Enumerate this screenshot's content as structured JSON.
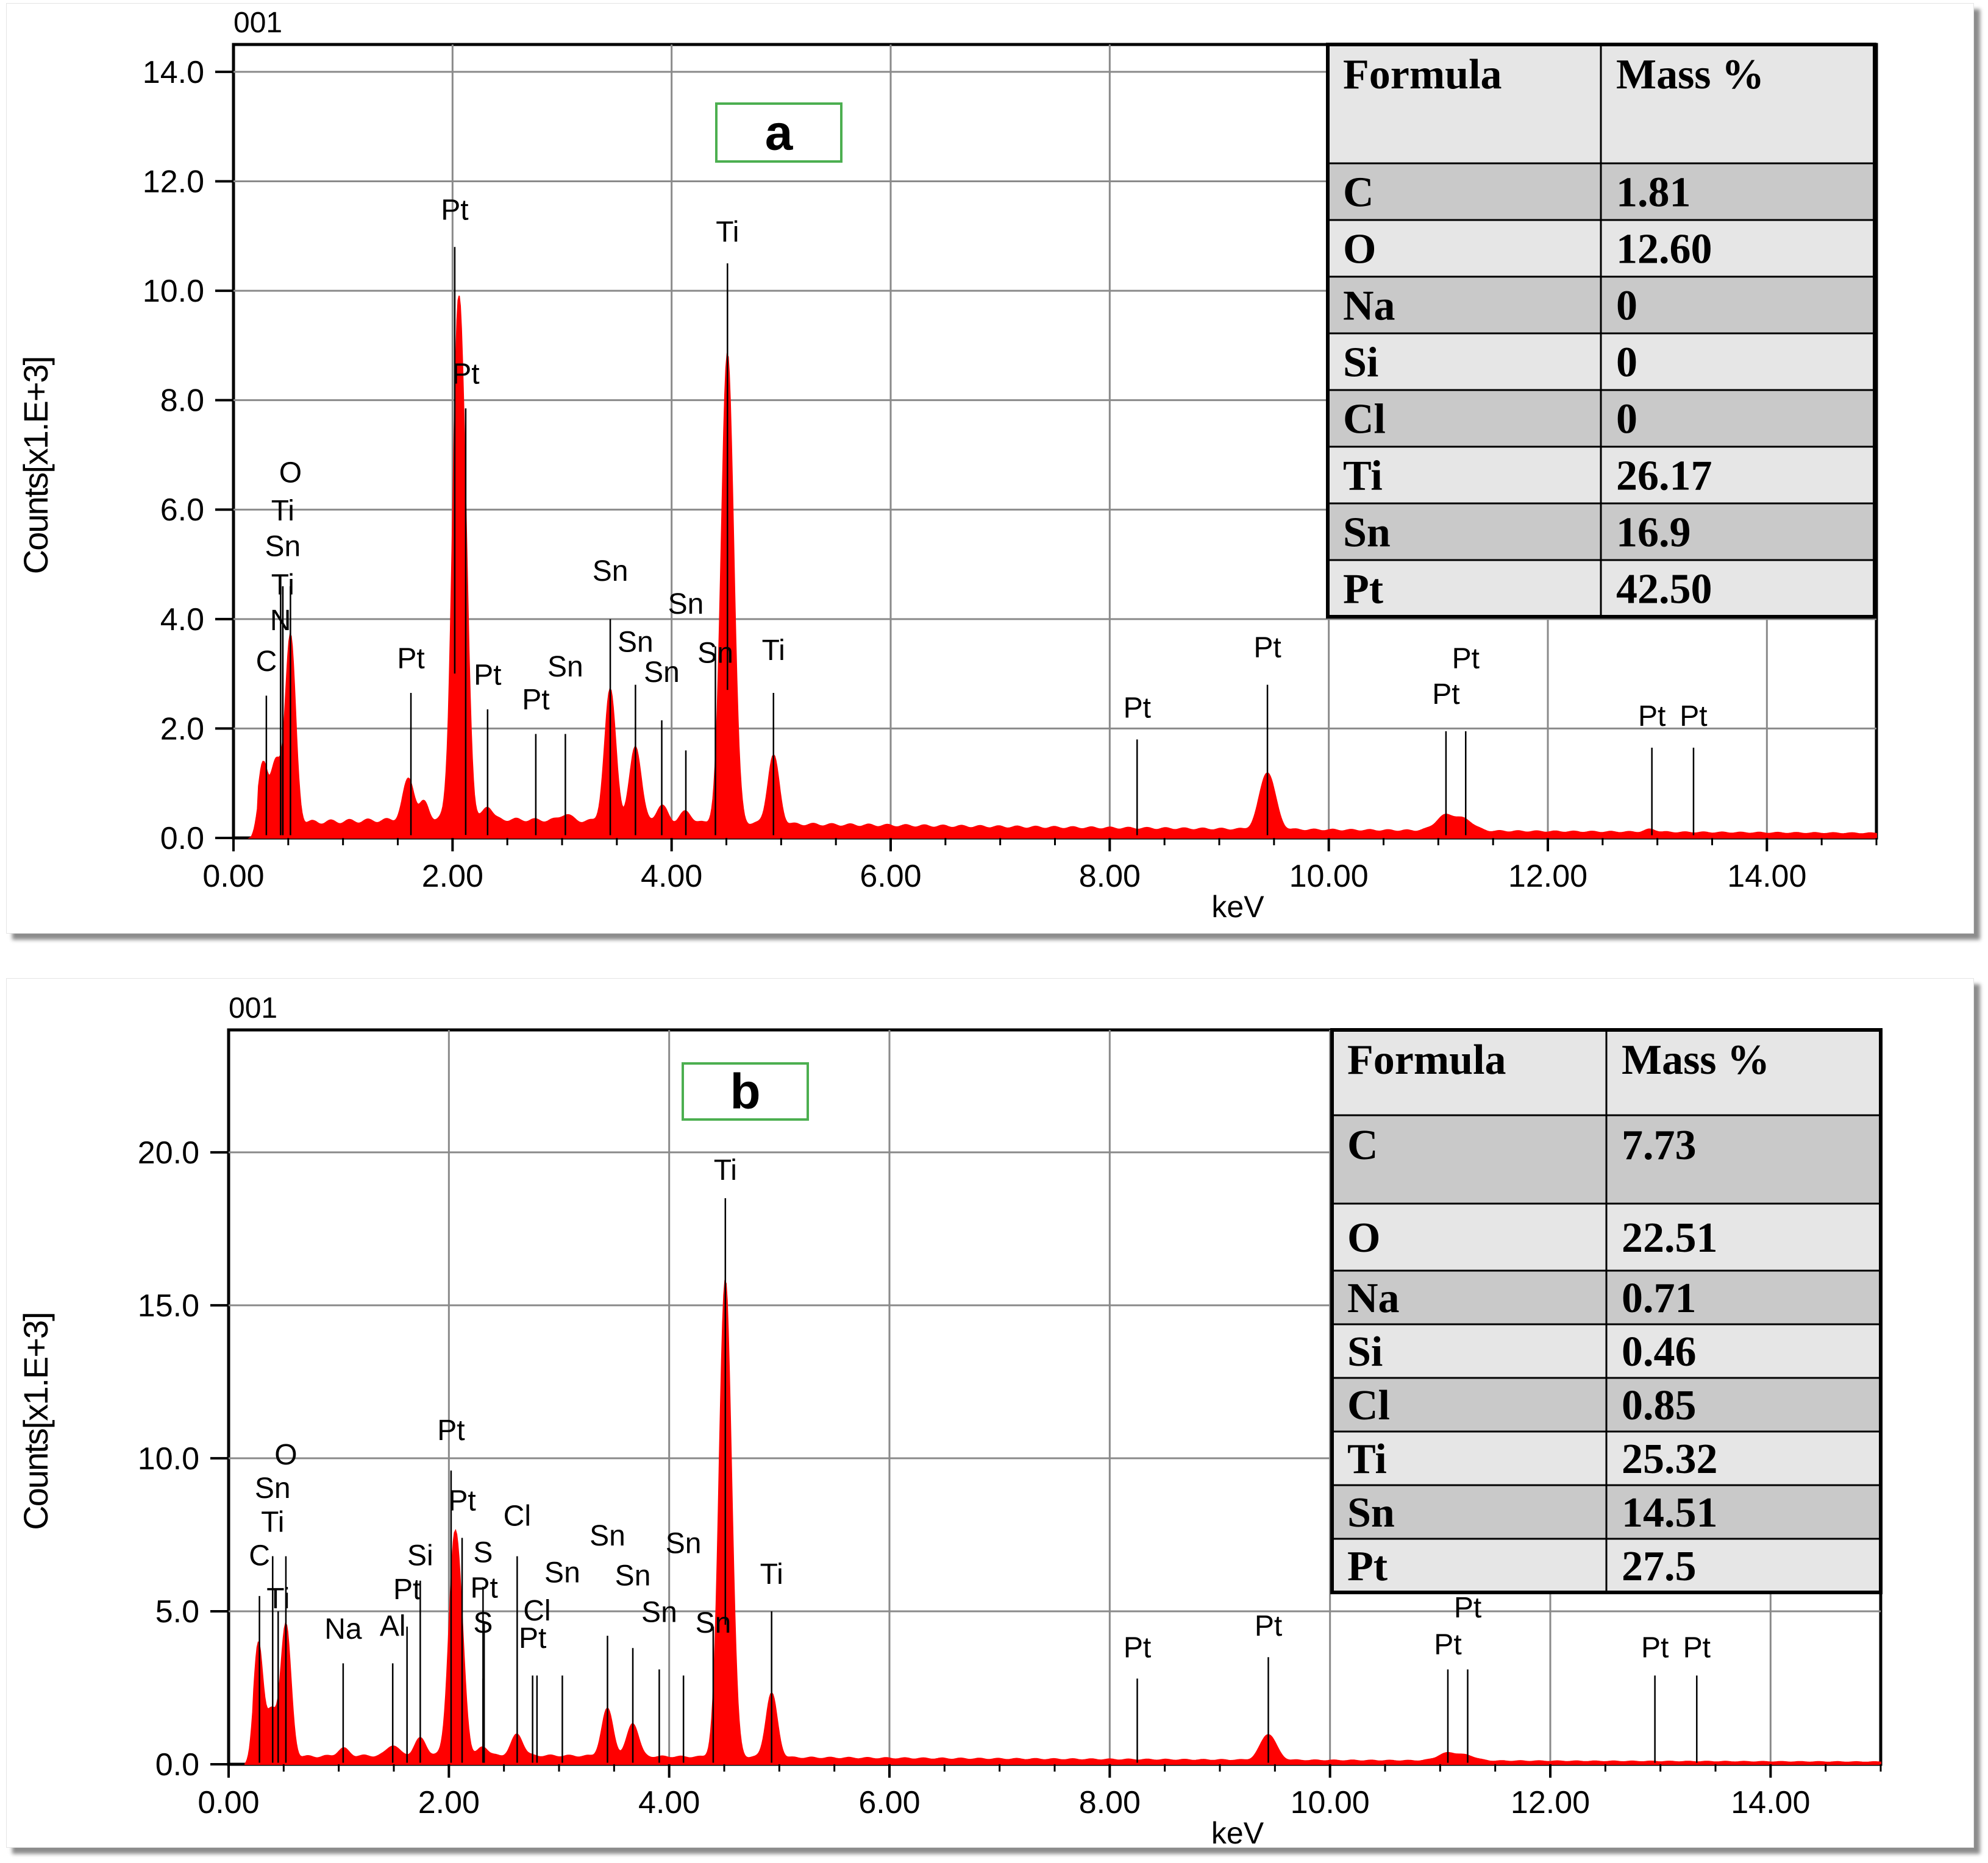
{
  "chart_data": [
    {
      "type": "area",
      "id": "a",
      "panel_label": "a",
      "corner_label": "001",
      "xlabel": "keV",
      "ylabel": "Counts[x1.E+3]",
      "xlim": [
        0,
        15
      ],
      "ylim": [
        0,
        14.5
      ],
      "x_ticks": [
        0,
        2,
        4,
        6,
        8,
        10,
        12,
        14
      ],
      "x_tick_labels": [
        "0.00",
        "2.00",
        "4.00",
        "6.00",
        "8.00",
        "10.00",
        "12.00",
        "14.00"
      ],
      "y_ticks": [
        0,
        2,
        4,
        6,
        8,
        10,
        12,
        14
      ],
      "y_tick_labels": [
        "0.0",
        "2.0",
        "4.0",
        "6.0",
        "8.0",
        "10.0",
        "12.0",
        "14.0"
      ],
      "grid": true,
      "series_color": "#ff0000",
      "background": 0.35,
      "peaks": [
        {
          "x": 0.27,
          "h": 1.1,
          "w": 0.04
        },
        {
          "x": 0.39,
          "h": 1.1,
          "w": 0.05
        },
        {
          "x": 0.52,
          "h": 3.4,
          "w": 0.045
        },
        {
          "x": 1.6,
          "h": 0.75,
          "w": 0.05
        },
        {
          "x": 1.74,
          "h": 0.3,
          "w": 0.04
        },
        {
          "x": 2.05,
          "h": 8.9,
          "w": 0.05
        },
        {
          "x": 2.12,
          "h": 2.5,
          "w": 0.04
        },
        {
          "x": 2.32,
          "h": 0.25,
          "w": 0.04
        },
        {
          "x": 3.03,
          "h": 0.12,
          "w": 0.05
        },
        {
          "x": 3.44,
          "h": 2.4,
          "w": 0.05
        },
        {
          "x": 3.67,
          "h": 1.4,
          "w": 0.05
        },
        {
          "x": 3.91,
          "h": 0.3,
          "w": 0.05
        },
        {
          "x": 4.13,
          "h": 0.2,
          "w": 0.05
        },
        {
          "x": 4.51,
          "h": 8.6,
          "w": 0.055
        },
        {
          "x": 4.93,
          "h": 1.25,
          "w": 0.05
        },
        {
          "x": 9.44,
          "h": 1.05,
          "w": 0.07
        },
        {
          "x": 11.07,
          "h": 0.28,
          "w": 0.09
        },
        {
          "x": 11.25,
          "h": 0.18,
          "w": 0.08
        },
        {
          "x": 12.94,
          "h": 0.05,
          "w": 0.05
        }
      ],
      "annotations": [
        {
          "label": "O",
          "x": 0.52,
          "line_top": 4.6,
          "text_y": 6.5
        },
        {
          "label": "Ti",
          "x": 0.45,
          "line_top": 4.6,
          "text_y": 5.8
        },
        {
          "label": "Sn",
          "x": 0.45,
          "line_top": 4.6,
          "text_y": 5.15
        },
        {
          "label": "Ti",
          "x": 0.45,
          "line_top": 4.6,
          "text_y": 4.45
        },
        {
          "label": "N",
          "x": 0.43,
          "line_top": 4.6,
          "text_y": 3.8
        },
        {
          "label": "C",
          "x": 0.3,
          "line_top": 2.6,
          "text_y": 3.05
        },
        {
          "label": "Pt",
          "x": 2.02,
          "line_top": 10.8,
          "text_y": 11.3
        },
        {
          "label": "Pt",
          "x": 2.12,
          "line_top": 7.85,
          "text_y": 8.3
        },
        {
          "label": "Pt",
          "x": 1.62,
          "line_top": 2.65,
          "text_y": 3.1
        },
        {
          "label": "Pt",
          "x": 2.32,
          "line_top": 2.35,
          "text_y": 2.8
        },
        {
          "label": "Pt",
          "x": 2.76,
          "line_top": 1.9,
          "text_y": 2.35
        },
        {
          "label": "Sn",
          "x": 3.03,
          "line_top": 1.9,
          "text_y": 2.95
        },
        {
          "label": "Sn",
          "x": 3.44,
          "line_top": 4.0,
          "text_y": 4.7
        },
        {
          "label": "Sn",
          "x": 3.67,
          "line_top": 2.8,
          "text_y": 3.4
        },
        {
          "label": "Sn",
          "x": 3.91,
          "line_top": 2.15,
          "text_y": 2.85
        },
        {
          "label": "Sn",
          "x": 4.13,
          "line_top": 1.6,
          "text_y": 4.1
        },
        {
          "label": "Sn",
          "x": 4.4,
          "line_top": 3.5,
          "text_y": 3.2
        },
        {
          "label": "Ti",
          "x": 4.51,
          "line_top": 10.5,
          "text_y": 10.9
        },
        {
          "label": "Ti",
          "x": 4.93,
          "line_top": 2.65,
          "text_y": 3.25
        },
        {
          "label": "Pt",
          "x": 8.25,
          "line_top": 1.8,
          "text_y": 2.2
        },
        {
          "label": "Pt",
          "x": 9.44,
          "line_top": 2.8,
          "text_y": 3.3
        },
        {
          "label": "Pt",
          "x": 11.07,
          "line_top": 1.95,
          "text_y": 2.45
        },
        {
          "label": "Pt",
          "x": 11.25,
          "line_top": 1.95,
          "text_y": 3.1
        },
        {
          "label": "Pt",
          "x": 12.95,
          "line_top": 1.65,
          "text_y": 2.05
        },
        {
          "label": "Pt",
          "x": 13.33,
          "line_top": 1.65,
          "text_y": 2.05
        }
      ],
      "table": {
        "headers": [
          "Formula",
          "Mass %"
        ],
        "rows": [
          [
            "C",
            "1.81"
          ],
          [
            "O",
            "12.60"
          ],
          [
            "Na",
            "0"
          ],
          [
            "Si",
            "0"
          ],
          [
            "Cl",
            "0"
          ],
          [
            "Ti",
            "26.17"
          ],
          [
            "Sn",
            "16.9"
          ],
          [
            "Pt",
            "42.50"
          ]
        ]
      }
    },
    {
      "type": "area",
      "id": "b",
      "panel_label": "b",
      "corner_label": "001",
      "xlabel": "keV",
      "ylabel": "Counts[x1.E+3]",
      "xlim": [
        0,
        15
      ],
      "ylim": [
        0,
        24
      ],
      "x_ticks": [
        0,
        2,
        4,
        6,
        8,
        10,
        12,
        14
      ],
      "x_tick_labels": [
        "0.00",
        "2.00",
        "4.00",
        "6.00",
        "8.00",
        "10.00",
        "12.00",
        "14.00"
      ],
      "y_ticks": [
        0,
        5,
        10,
        15,
        20
      ],
      "y_tick_labels": [
        "0.0",
        "5.0",
        "10.0",
        "15.0",
        "20.0"
      ],
      "grid": true,
      "series_color": "#ff0000",
      "background": 0.3,
      "peaks": [
        {
          "x": 0.27,
          "h": 3.7,
          "w": 0.04
        },
        {
          "x": 0.39,
          "h": 1.5,
          "w": 0.05
        },
        {
          "x": 0.52,
          "h": 4.3,
          "w": 0.045
        },
        {
          "x": 1.04,
          "h": 0.25,
          "w": 0.05
        },
        {
          "x": 1.49,
          "h": 0.35,
          "w": 0.05
        },
        {
          "x": 1.74,
          "h": 0.55,
          "w": 0.05
        },
        {
          "x": 2.05,
          "h": 6.8,
          "w": 0.05
        },
        {
          "x": 2.12,
          "h": 2.0,
          "w": 0.04
        },
        {
          "x": 2.31,
          "h": 0.3,
          "w": 0.04
        },
        {
          "x": 2.62,
          "h": 0.7,
          "w": 0.05
        },
        {
          "x": 3.44,
          "h": 1.55,
          "w": 0.05
        },
        {
          "x": 3.67,
          "h": 1.1,
          "w": 0.05
        },
        {
          "x": 4.51,
          "h": 15.6,
          "w": 0.055
        },
        {
          "x": 4.93,
          "h": 2.1,
          "w": 0.05
        },
        {
          "x": 9.44,
          "h": 0.85,
          "w": 0.07
        },
        {
          "x": 11.07,
          "h": 0.25,
          "w": 0.09
        },
        {
          "x": 11.25,
          "h": 0.15,
          "w": 0.08
        }
      ],
      "annotations": [
        {
          "label": "O",
          "x": 0.52,
          "line_top": 6.8,
          "text_y": 9.8
        },
        {
          "label": "Sn",
          "x": 0.4,
          "line_top": 6.8,
          "text_y": 8.7
        },
        {
          "label": "Ti",
          "x": 0.4,
          "line_top": 6.8,
          "text_y": 7.6
        },
        {
          "label": "C",
          "x": 0.28,
          "line_top": 5.5,
          "text_y": 6.5
        },
        {
          "label": "Ti",
          "x": 0.45,
          "line_top": 5.0,
          "text_y": 5.1
        },
        {
          "label": "Na",
          "x": 1.04,
          "line_top": 3.3,
          "text_y": 4.1
        },
        {
          "label": "Al",
          "x": 1.49,
          "line_top": 3.3,
          "text_y": 4.2
        },
        {
          "label": "Si",
          "x": 1.74,
          "line_top": 6.0,
          "text_y": 6.5
        },
        {
          "label": "Pt",
          "x": 1.62,
          "line_top": 4.5,
          "text_y": 5.4
        },
        {
          "label": "Pt",
          "x": 2.02,
          "line_top": 9.6,
          "text_y": 10.6
        },
        {
          "label": "Pt",
          "x": 2.12,
          "line_top": 7.4,
          "text_y": 8.3
        },
        {
          "label": "Cl",
          "x": 2.62,
          "line_top": 6.8,
          "text_y": 7.8
        },
        {
          "label": "S",
          "x": 2.31,
          "line_top": 5.8,
          "text_y": 6.6
        },
        {
          "label": "Pt",
          "x": 2.32,
          "line_top": 4.6,
          "text_y": 5.45
        },
        {
          "label": "S",
          "x": 2.31,
          "line_top": 2.8,
          "text_y": 4.3
        },
        {
          "label": "Cl",
          "x": 2.8,
          "line_top": 2.9,
          "text_y": 4.7
        },
        {
          "label": "Pt",
          "x": 2.76,
          "line_top": 2.9,
          "text_y": 3.8
        },
        {
          "label": "Sn",
          "x": 3.03,
          "line_top": 2.9,
          "text_y": 5.95
        },
        {
          "label": "Sn",
          "x": 3.44,
          "line_top": 4.2,
          "text_y": 7.15
        },
        {
          "label": "Sn",
          "x": 3.67,
          "line_top": 3.8,
          "text_y": 5.85
        },
        {
          "label": "Sn",
          "x": 3.91,
          "line_top": 3.1,
          "text_y": 4.65
        },
        {
          "label": "Sn",
          "x": 4.13,
          "line_top": 2.9,
          "text_y": 6.9
        },
        {
          "label": "Sn",
          "x": 4.4,
          "line_top": 4.5,
          "text_y": 4.3
        },
        {
          "label": "Ti",
          "x": 4.51,
          "line_top": 18.5,
          "text_y": 19.1
        },
        {
          "label": "Ti",
          "x": 4.93,
          "line_top": 5.0,
          "text_y": 5.9
        },
        {
          "label": "Pt",
          "x": 8.25,
          "line_top": 2.8,
          "text_y": 3.5
        },
        {
          "label": "Pt",
          "x": 9.44,
          "line_top": 3.5,
          "text_y": 4.2
        },
        {
          "label": "Pt",
          "x": 11.07,
          "line_top": 3.1,
          "text_y": 3.6
        },
        {
          "label": "Pt",
          "x": 11.25,
          "line_top": 3.1,
          "text_y": 4.8
        },
        {
          "label": "Pt",
          "x": 12.95,
          "line_top": 2.9,
          "text_y": 3.5
        },
        {
          "label": "Pt",
          "x": 13.33,
          "line_top": 2.9,
          "text_y": 3.5
        }
      ],
      "table": {
        "headers": [
          "Formula",
          "Mass %"
        ],
        "rows": [
          [
            "C",
            "7.73"
          ],
          [
            "O",
            "22.51"
          ],
          [
            "Na",
            "0.71"
          ],
          [
            "Si",
            "0.46"
          ],
          [
            "Cl",
            "0.85"
          ],
          [
            "Ti",
            "25.32"
          ],
          [
            "Sn",
            "14.51"
          ],
          [
            "Pt",
            "27.5"
          ]
        ]
      }
    }
  ]
}
